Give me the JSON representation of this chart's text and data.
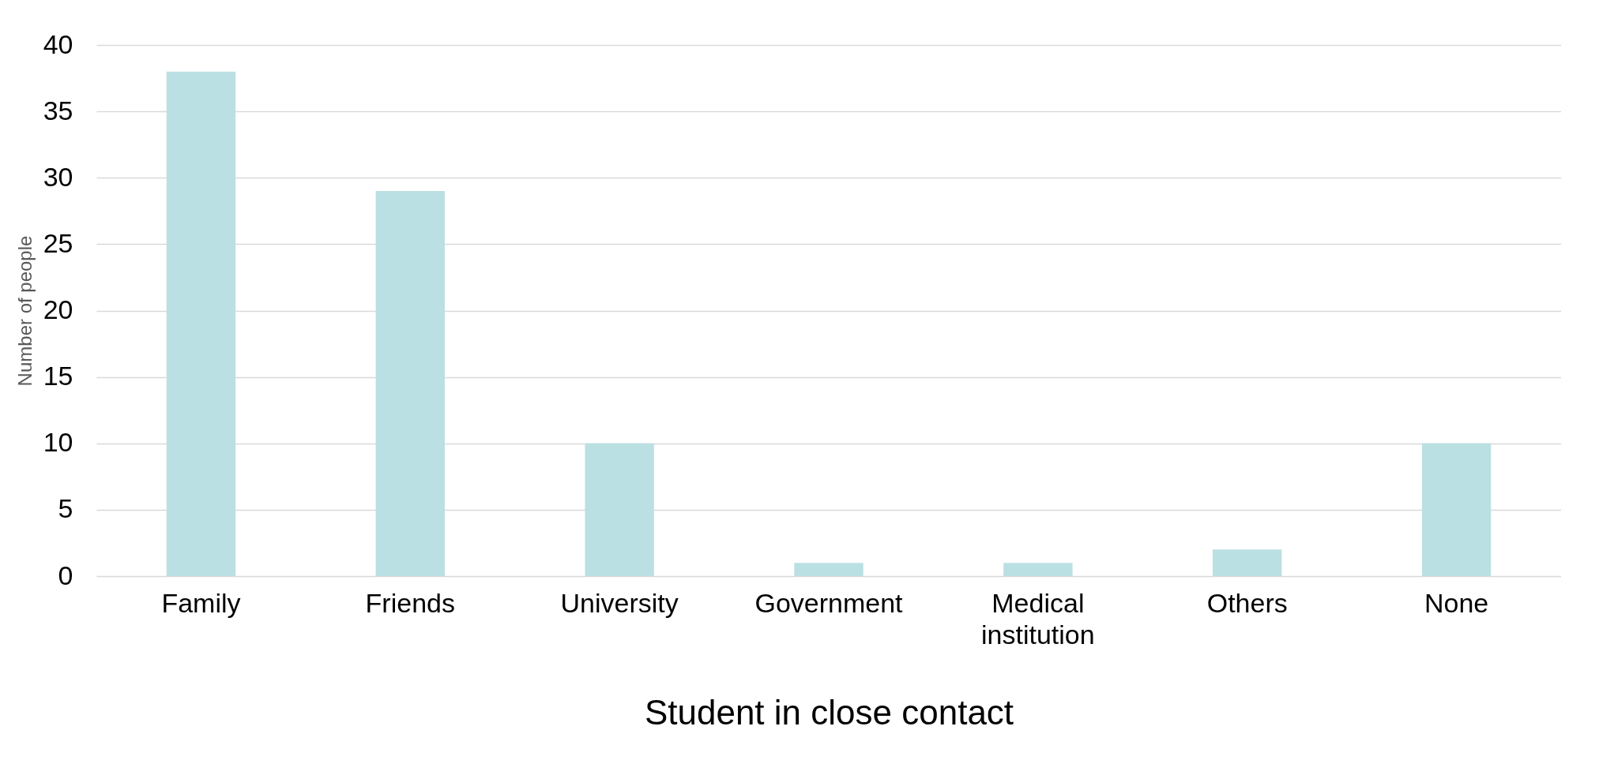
{
  "chart_data": {
    "type": "bar",
    "xlabel": "Student in close contact",
    "ylabel": "Number of people",
    "categories": [
      "Family",
      "Friends",
      "University",
      "Government",
      "Medical institution",
      "Others",
      "None"
    ],
    "values": [
      38,
      29,
      10,
      1,
      1,
      2,
      10
    ],
    "color": "#bbe0e3",
    "ylim": [
      0,
      40
    ],
    "yticks": [
      0,
      5,
      10,
      15,
      20,
      25,
      30,
      35,
      40
    ],
    "grid": "y"
  }
}
